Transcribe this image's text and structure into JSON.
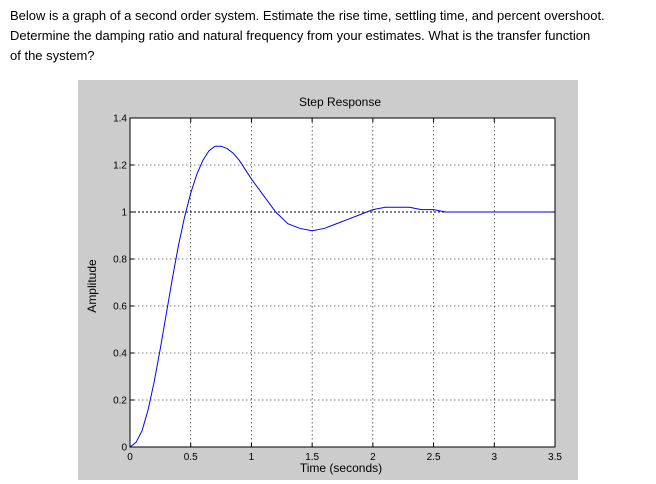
{
  "question": {
    "line1": "Below is a graph of a second order system.  Estimate the rise time, settling time, and percent overshoot.",
    "line2": "Determine the damping ratio and natural frequency from your estimates.  What is the transfer function",
    "line3": "of the system?"
  },
  "chart_data": {
    "type": "line",
    "title": "Step Response",
    "xlabel": "Time (seconds)",
    "ylabel": "Amplitude",
    "xlim": [
      0,
      3.5
    ],
    "ylim": [
      0,
      1.4
    ],
    "xticks": [
      "0",
      "0.5",
      "1",
      "1.5",
      "2",
      "2.5",
      "3",
      "3.5"
    ],
    "xtick_values": [
      0,
      0.5,
      1,
      1.5,
      2,
      2.5,
      3,
      3.5
    ],
    "yticks": [
      "0",
      "0.2",
      "0.4",
      "0.6",
      "0.8",
      "1",
      "1.2",
      "1.4"
    ],
    "ytick_values": [
      0,
      0.2,
      0.4,
      0.6,
      0.8,
      1.0,
      1.2,
      1.4
    ],
    "grid": true,
    "reference_line": 1.0,
    "series": [
      {
        "color": "#0000ff",
        "x": [
          0,
          0.05,
          0.1,
          0.15,
          0.2,
          0.25,
          0.3,
          0.35,
          0.4,
          0.45,
          0.5,
          0.55,
          0.6,
          0.65,
          0.7,
          0.75,
          0.8,
          0.85,
          0.9,
          0.95,
          1.0,
          1.1,
          1.2,
          1.3,
          1.4,
          1.5,
          1.6,
          1.7,
          1.8,
          1.9,
          2.0,
          2.1,
          2.2,
          2.3,
          2.4,
          2.5,
          2.6,
          2.7,
          2.8,
          2.9,
          3.0,
          3.1,
          3.2,
          3.3,
          3.4,
          3.5
        ],
        "y": [
          0,
          0.02,
          0.07,
          0.16,
          0.28,
          0.42,
          0.57,
          0.72,
          0.86,
          0.98,
          1.08,
          1.16,
          1.22,
          1.26,
          1.28,
          1.28,
          1.27,
          1.25,
          1.22,
          1.18,
          1.14,
          1.07,
          1.0,
          0.95,
          0.93,
          0.92,
          0.93,
          0.95,
          0.97,
          0.99,
          1.01,
          1.02,
          1.02,
          1.02,
          1.01,
          1.01,
          1.0,
          1.0,
          1.0,
          1.0,
          1.0,
          1.0,
          1.0,
          1.0,
          1.0,
          1.0
        ]
      }
    ]
  }
}
